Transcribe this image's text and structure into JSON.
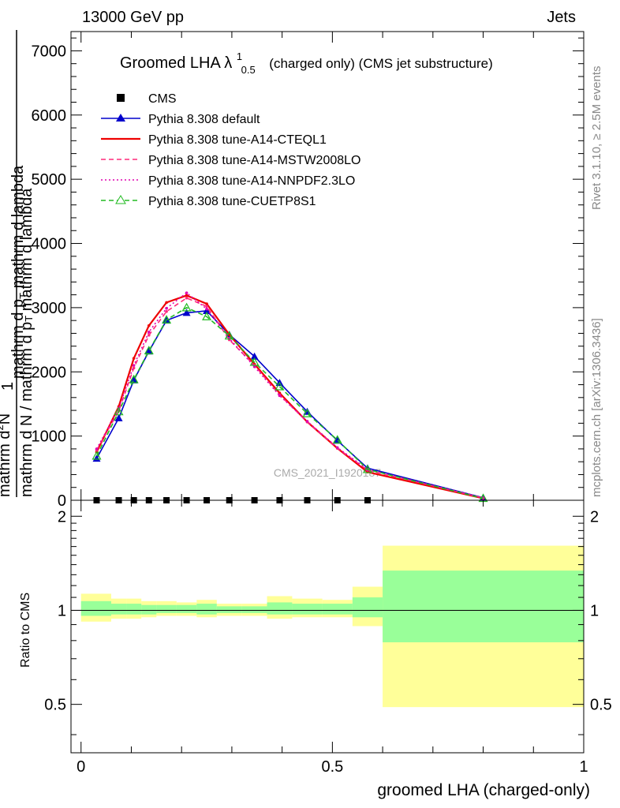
{
  "header": {
    "left": "13000 GeV pp",
    "right": "Jets"
  },
  "side_labels": {
    "rivet": "Rivet 3.1.10, ≥ 2.5M events",
    "mcplots": "mcplots.cern.ch [arXiv:1306.3436]"
  },
  "chart_data": [
    {
      "type": "line",
      "title": "Groomed LHA λ",
      "title_sup": "1",
      "title_sub": "0.5",
      "title_suffix": "(charged only) (CMS jet substructure)",
      "watermark": "CMS_2021_I1920187",
      "ylabel": {
        "numerator": "1",
        "line1": "mathrm d N / mathrm d p",
        "line1_sub": "T",
        "line1_end": " mathrm d lambda",
        "line2": "mathrm d",
        "line2_sup": "2",
        "line2_end": "N",
        "line3": "mathrm d p",
        "line3_sub": "T",
        "line3_end": " mathrm d lambda"
      },
      "ylim": [
        0,
        7300
      ],
      "yticks": [
        0,
        1000,
        2000,
        3000,
        4000,
        5000,
        6000,
        7000
      ],
      "ytick_labels": [
        "0",
        "1000",
        "2000",
        "3000",
        "4000",
        "5000",
        "6000",
        "7000"
      ],
      "xlim": [
        -0.02,
        1.0
      ],
      "data_x": [
        0.031,
        0.075,
        0.105,
        0.135,
        0.17,
        0.21,
        0.25,
        0.295,
        0.345,
        0.395,
        0.45,
        0.51,
        0.57,
        0.8
      ],
      "data_y": [
        0,
        0,
        0,
        0,
        0,
        0,
        0,
        0,
        0,
        0,
        0,
        0,
        0,
        0
      ],
      "series": [
        {
          "name": "CMS",
          "style": "data",
          "color": "#000000",
          "x": [
            0.031,
            0.075,
            0.105,
            0.135,
            0.17,
            0.21,
            0.25,
            0.295,
            0.345,
            0.395,
            0.45,
            0.51,
            0.57
          ],
          "y": [
            0,
            0,
            0,
            0,
            0,
            0,
            0,
            0,
            0,
            0,
            0,
            0,
            0
          ]
        },
        {
          "name": "Pythia 8.308 default",
          "style": "solid-triangle",
          "color": "#0000cc",
          "x": [
            0.031,
            0.075,
            0.105,
            0.135,
            0.17,
            0.21,
            0.25,
            0.295,
            0.345,
            0.395,
            0.45,
            0.51,
            0.57,
            0.8
          ],
          "y": [
            650,
            1280,
            1870,
            2320,
            2800,
            2920,
            2950,
            2580,
            2240,
            1830,
            1380,
            930,
            500,
            40
          ]
        },
        {
          "name": "Pythia 8.308 tune-A14-CTEQL1",
          "style": "solid",
          "color": "#ee0000",
          "x": [
            0.031,
            0.075,
            0.105,
            0.135,
            0.17,
            0.21,
            0.25,
            0.295,
            0.345,
            0.395,
            0.45,
            0.51,
            0.57,
            0.8
          ],
          "y": [
            750,
            1460,
            2210,
            2720,
            3080,
            3190,
            3060,
            2580,
            2120,
            1670,
            1220,
            810,
            440,
            30
          ]
        },
        {
          "name": "Pythia 8.308 tune-A14-MSTW2008LO",
          "style": "dashed",
          "color": "#ff2a7a",
          "x": [
            0.031,
            0.075,
            0.105,
            0.135,
            0.17,
            0.21,
            0.25,
            0.295,
            0.345,
            0.395,
            0.45,
            0.51,
            0.57,
            0.8
          ],
          "y": [
            780,
            1390,
            2060,
            2570,
            2940,
            3150,
            3020,
            2500,
            2100,
            1640,
            1220,
            810,
            470,
            35
          ]
        },
        {
          "name": "Pythia 8.308 tune-A14-NNPDF2.3LO",
          "style": "dotted",
          "color": "#e000b0",
          "x": [
            0.031,
            0.075,
            0.105,
            0.135,
            0.17,
            0.21,
            0.25,
            0.295,
            0.345,
            0.395,
            0.45,
            0.51,
            0.57,
            0.8
          ],
          "y": [
            800,
            1430,
            2100,
            2620,
            2990,
            3230,
            2980,
            2520,
            2080,
            1630,
            1230,
            820,
            480,
            40
          ]
        },
        {
          "name": "Pythia 8.308 tune-CUETP8S1",
          "style": "dashed-open-triangle",
          "color": "#22bb22",
          "x": [
            0.031,
            0.075,
            0.105,
            0.135,
            0.17,
            0.21,
            0.25,
            0.295,
            0.345,
            0.395,
            0.45,
            0.51,
            0.57,
            0.8
          ],
          "y": [
            690,
            1380,
            1880,
            2330,
            2810,
            3000,
            2860,
            2560,
            2150,
            1770,
            1350,
            940,
            480,
            30
          ]
        }
      ]
    },
    {
      "type": "area",
      "ylabel": "Ratio to CMS",
      "xlabel": "groomed LHA (charged-only)",
      "xlim": [
        -0.02,
        1.0
      ],
      "ylim": [
        0.35,
        2.25
      ],
      "yticks": [
        0.5,
        1,
        2
      ],
      "ytick_labels": [
        "0.5",
        "1",
        "2"
      ],
      "xticks": [
        0,
        0.5,
        1
      ],
      "xtick_labels": [
        "0",
        "0.5",
        "1"
      ],
      "reference_line": 1,
      "bands": {
        "bin_edges": [
          0,
          0.06,
          0.09,
          0.12,
          0.15,
          0.19,
          0.23,
          0.27,
          0.32,
          0.37,
          0.42,
          0.48,
          0.54,
          0.6,
          1.0
        ],
        "outer": {
          "color": "#ffff99",
          "lo": [
            0.92,
            0.94,
            0.94,
            0.95,
            0.96,
            0.96,
            0.95,
            0.96,
            0.96,
            0.94,
            0.95,
            0.95,
            0.89,
            0.49
          ],
          "hi": [
            1.13,
            1.09,
            1.09,
            1.07,
            1.07,
            1.06,
            1.08,
            1.05,
            1.05,
            1.11,
            1.09,
            1.08,
            1.19,
            1.61
          ]
        },
        "inner": {
          "color": "#99ff99",
          "lo": [
            0.96,
            0.97,
            0.97,
            0.97,
            0.98,
            0.98,
            0.97,
            0.98,
            0.98,
            0.97,
            0.97,
            0.97,
            0.95,
            0.79
          ],
          "hi": [
            1.07,
            1.05,
            1.05,
            1.04,
            1.04,
            1.04,
            1.05,
            1.03,
            1.03,
            1.06,
            1.05,
            1.05,
            1.1,
            1.34
          ]
        }
      }
    }
  ]
}
